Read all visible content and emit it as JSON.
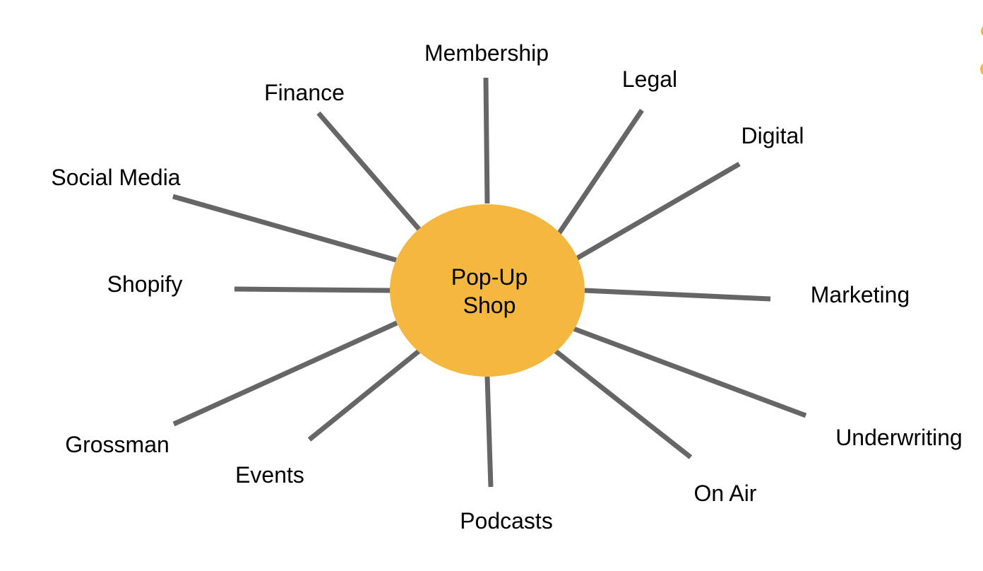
{
  "colors": {
    "hub_fill": "#F4B73F",
    "spoke_stroke": "#666666",
    "text": "#000000",
    "background": "#FFFFFF"
  },
  "hub": {
    "label_line1": "Pop-Up",
    "label_line2": "Shop"
  },
  "nodes": [
    {
      "id": "membership",
      "label": "Membership"
    },
    {
      "id": "legal",
      "label": "Legal"
    },
    {
      "id": "digital",
      "label": "Digital"
    },
    {
      "id": "marketing",
      "label": "Marketing"
    },
    {
      "id": "underwriting",
      "label": "Underwriting"
    },
    {
      "id": "on-air",
      "label": "On Air"
    },
    {
      "id": "podcasts",
      "label": "Podcasts"
    },
    {
      "id": "events",
      "label": "Events"
    },
    {
      "id": "grossman",
      "label": "Grossman"
    },
    {
      "id": "shopify",
      "label": "Shopify"
    },
    {
      "id": "social-media",
      "label": "Social Media"
    },
    {
      "id": "finance",
      "label": "Finance"
    }
  ],
  "edges": [
    {
      "from": "hub",
      "to": "membership"
    },
    {
      "from": "hub",
      "to": "legal"
    },
    {
      "from": "hub",
      "to": "digital"
    },
    {
      "from": "hub",
      "to": "marketing"
    },
    {
      "from": "hub",
      "to": "underwriting"
    },
    {
      "from": "hub",
      "to": "on-air"
    },
    {
      "from": "hub",
      "to": "podcasts"
    },
    {
      "from": "hub",
      "to": "events"
    },
    {
      "from": "hub",
      "to": "grossman"
    },
    {
      "from": "hub",
      "to": "shopify"
    },
    {
      "from": "hub",
      "to": "social-media"
    },
    {
      "from": "hub",
      "to": "finance"
    }
  ]
}
